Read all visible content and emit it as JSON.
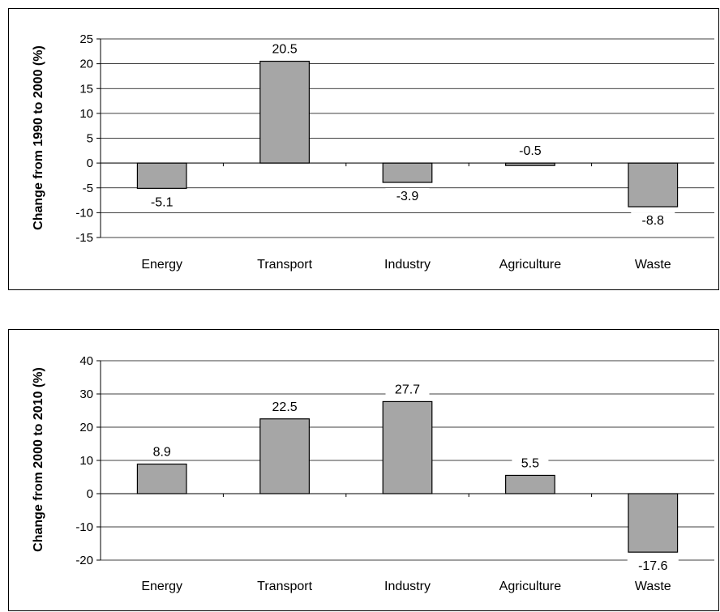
{
  "chart_data": [
    {
      "type": "bar",
      "categories": [
        "Energy",
        "Transport",
        "Industry",
        "Agriculture",
        "Waste"
      ],
      "values": [
        -5.1,
        20.5,
        -3.9,
        -0.5,
        -8.8
      ],
      "data_labels": [
        "-5.1",
        "20.5",
        "-3.9",
        "-0.5",
        "-8.8"
      ],
      "title": "",
      "xlabel": "",
      "ylabel": "Change from 1990 to 2000 (%)",
      "ylim": [
        -15,
        25
      ],
      "yticks": [
        25,
        20,
        15,
        10,
        5,
        0,
        -5,
        -10,
        -15
      ],
      "grid": true,
      "bar_color": "#a6a6a6"
    },
    {
      "type": "bar",
      "categories": [
        "Energy",
        "Transport",
        "Industry",
        "Agriculture",
        "Waste"
      ],
      "values": [
        8.9,
        22.5,
        27.7,
        5.5,
        -17.6
      ],
      "data_labels": [
        "8.9",
        "22.5",
        "27.7",
        "5.5",
        "-17.6"
      ],
      "title": "",
      "xlabel": "",
      "ylabel": "Change from 2000 to 2010 (%)",
      "ylim": [
        -20,
        40
      ],
      "yticks": [
        40,
        30,
        20,
        10,
        0,
        -10,
        -20
      ],
      "grid": true,
      "bar_color": "#a6a6a6"
    }
  ]
}
